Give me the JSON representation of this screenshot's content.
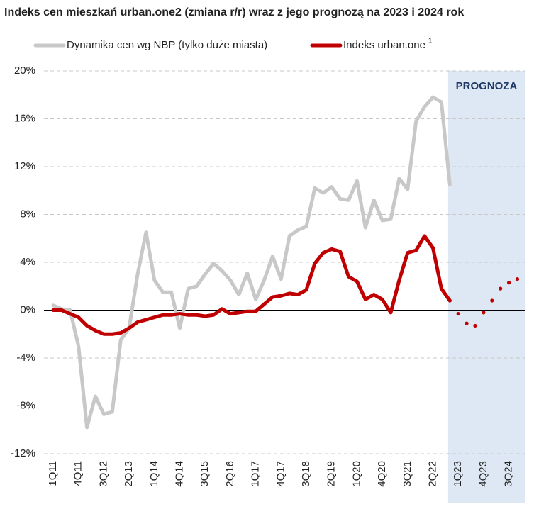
{
  "chart_data": {
    "type": "line",
    "title": "Indeks cen mieszkań urban.one2 (zmiana r/r) wraz z jego prognozą na 2023 i 2024 rok",
    "annotation": "PROGNOZA",
    "categories": [
      "1Q11",
      null,
      null,
      "4Q11",
      null,
      null,
      "3Q12",
      null,
      null,
      "2Q13",
      null,
      null,
      "1Q14",
      null,
      null,
      "4Q14",
      null,
      null,
      "3Q15",
      null,
      null,
      "2Q16",
      null,
      null,
      "1Q17",
      null,
      null,
      "4Q17",
      null,
      null,
      "3Q18",
      null,
      null,
      "2Q19",
      null,
      null,
      "1Q20",
      null,
      null,
      "4Q20",
      null,
      null,
      "3Q21",
      null,
      null,
      "2Q22",
      null,
      null,
      "1Q23",
      null,
      null,
      "4Q23",
      null,
      null,
      "3Q24",
      null
    ],
    "series": [
      {
        "name": "Dynamika cen wg NBP (tylko duże miasta)",
        "color": "#c8c8c8",
        "values": [
          0.4,
          0.1,
          0.0,
          -3,
          -9.8,
          -7.2,
          -8.7,
          -8.5,
          -2.5,
          -1.5,
          3,
          6.5,
          2.5,
          1.5,
          1.5,
          -1.5,
          1.8,
          2,
          3,
          3.9,
          3.3,
          2.5,
          1.3,
          3.1,
          0.9,
          2.5,
          4.5,
          2.6,
          6.2,
          6.7,
          7,
          10.2,
          9.8,
          10.3,
          9.3,
          9.2,
          10.8,
          6.9,
          9.2,
          7.5,
          7.6,
          11.0,
          10.1,
          15.8,
          17,
          17.8,
          17.4,
          10.5,
          null,
          null,
          null,
          null,
          null,
          null,
          null,
          null
        ]
      },
      {
        "name": "Indeks urban.one",
        "name_note": "1",
        "color": "#c00000",
        "values": [
          0,
          0,
          -0.3,
          -0.6,
          -1.3,
          -1.7,
          -2,
          -2,
          -1.9,
          -1.5,
          -1,
          -0.8,
          -0.6,
          -0.4,
          -0.4,
          -0.3,
          -0.4,
          -0.4,
          -0.5,
          -0.4,
          0.1,
          -0.3,
          -0.2,
          -0.1,
          -0.1,
          0.5,
          1.1,
          1.2,
          1.4,
          1.3,
          1.7,
          3.9,
          4.8,
          5.1,
          4.9,
          2.8,
          2.4,
          0.9,
          1.3,
          0.9,
          -0.2,
          2.5,
          4.8,
          5.0,
          6.2,
          5.2,
          1.8,
          0.8,
          null,
          null,
          null,
          null,
          null,
          null,
          null,
          null
        ],
        "forecast": [
          null,
          null,
          null,
          null,
          null,
          null,
          null,
          null,
          null,
          null,
          null,
          null,
          null,
          null,
          null,
          null,
          null,
          null,
          null,
          null,
          null,
          null,
          null,
          null,
          null,
          null,
          null,
          null,
          null,
          null,
          null,
          null,
          null,
          null,
          null,
          null,
          null,
          null,
          null,
          null,
          null,
          null,
          null,
          null,
          null,
          null,
          null,
          0.8,
          -0.3,
          -1.1,
          -1.3,
          -0.2,
          0.8,
          1.8,
          2.3,
          2.6
        ]
      }
    ],
    "ylim": [
      -12,
      20
    ],
    "yticks": [
      {
        "value": -12,
        "label": "-12%"
      },
      {
        "value": -8,
        "label": "-8%"
      },
      {
        "value": -4,
        "label": "-4%"
      },
      {
        "value": 0,
        "label": "0%"
      },
      {
        "value": 4,
        "label": "4%"
      },
      {
        "value": 8,
        "label": "8%"
      },
      {
        "value": 12,
        "label": "12%"
      },
      {
        "value": 16,
        "label": "16%"
      },
      {
        "value": 20,
        "label": "20%"
      }
    ],
    "grid": true
  }
}
